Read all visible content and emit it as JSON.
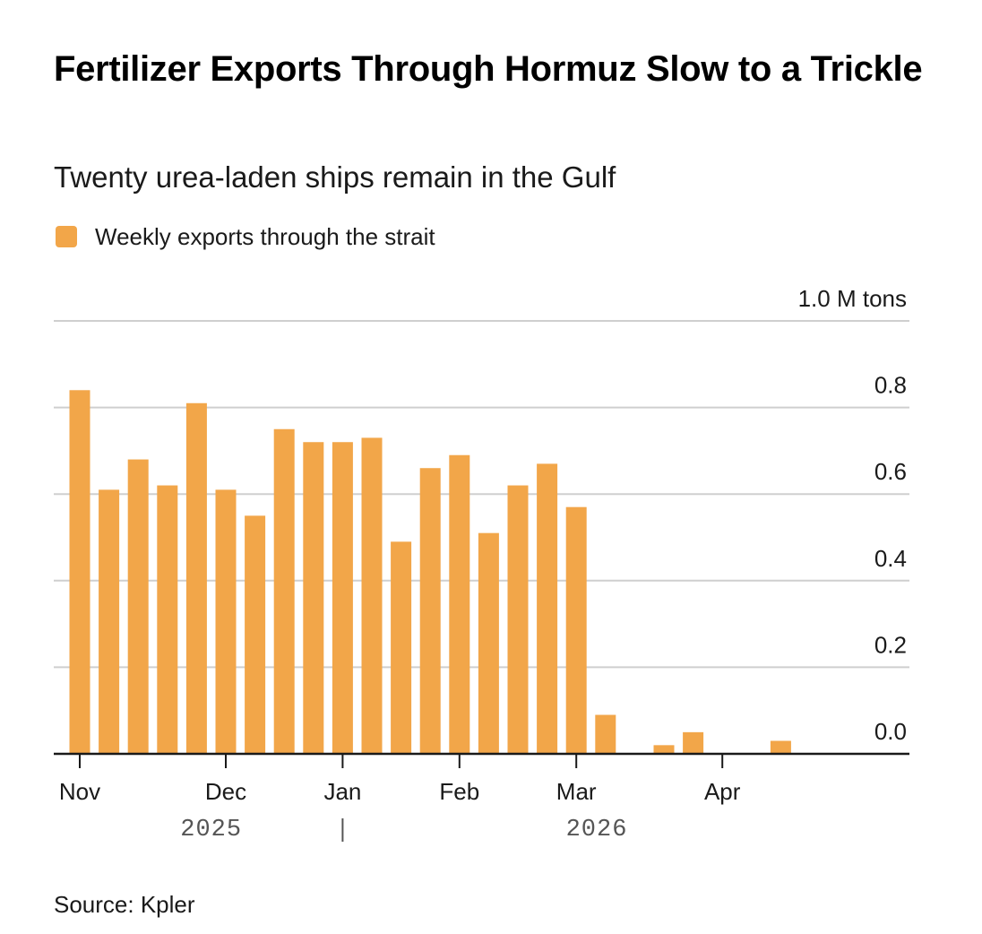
{
  "title": "Fertilizer Exports Through Hormuz Slow to a Trickle",
  "subtitle": "Twenty urea-laden ships remain in the Gulf",
  "legend": {
    "label": "Weekly exports through the strait",
    "color": "#F2A649"
  },
  "source": "Source: Kpler",
  "chart_data": {
    "type": "bar",
    "series": [
      {
        "name": "Weekly exports through the strait",
        "color": "#F2A649",
        "values": [
          0.84,
          0.61,
          0.68,
          0.62,
          0.81,
          0.61,
          0.55,
          0.75,
          0.72,
          0.72,
          0.73,
          0.49,
          0.66,
          0.69,
          0.51,
          0.62,
          0.67,
          0.57,
          0.09,
          0.0,
          0.02,
          0.05,
          0.0,
          0.0,
          0.03
        ]
      }
    ],
    "ylim": [
      0,
      1.0
    ],
    "yticks": [
      {
        "value": 1.0,
        "label": "1.0 M tons"
      },
      {
        "value": 0.8,
        "label": "0.8"
      },
      {
        "value": 0.6,
        "label": "0.6"
      },
      {
        "value": 0.4,
        "label": "0.4"
      },
      {
        "value": 0.2,
        "label": "0.2"
      },
      {
        "value": 0.0,
        "label": "0.0"
      }
    ],
    "xticks": [
      {
        "week": 0,
        "label": "Nov"
      },
      {
        "week": 5,
        "label": "Dec"
      },
      {
        "week": 9,
        "label": "Jan"
      },
      {
        "week": 13,
        "label": "Feb"
      },
      {
        "week": 17,
        "label": "Mar"
      },
      {
        "week": 22,
        "label": "Apr"
      }
    ],
    "year_labels": [
      {
        "week": 4.5,
        "label": "2025"
      },
      {
        "week": 17.7,
        "label": "2026"
      }
    ],
    "year_divider_week": 9,
    "grid": true,
    "legend_position": "top-left"
  }
}
